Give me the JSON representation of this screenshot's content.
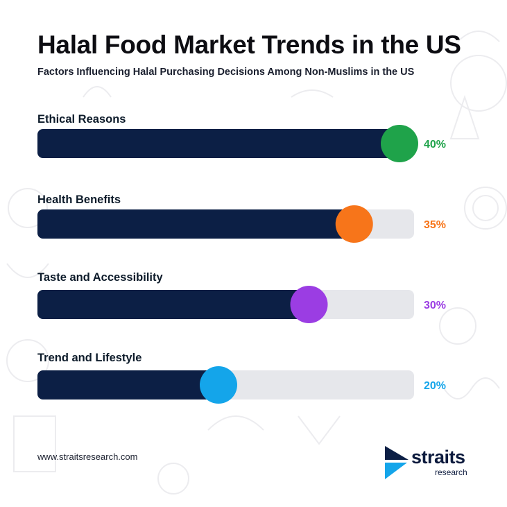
{
  "header": {
    "title": "Halal Food Market Trends in the US",
    "subtitle": "Factors Influencing Halal Purchasing Decisions Among Non-Muslims in the US"
  },
  "chart_data": {
    "type": "bar",
    "orientation": "horizontal",
    "categories": [
      "Ethical Reasons",
      "Health Benefits",
      "Taste and Accessibility",
      "Trend and Lifestyle"
    ],
    "values": [
      40,
      35,
      30,
      20
    ],
    "value_labels": [
      "40%",
      "35%",
      "30%",
      "20%"
    ],
    "unit": "%",
    "xlim": [
      0,
      40
    ],
    "colors": {
      "bar_fill": "#0c1f45",
      "track": "#e6e7eb",
      "markers": [
        "#1fa34a",
        "#f7751a",
        "#9b3de3",
        "#14a5ea"
      ]
    },
    "grid": false,
    "legend": "none"
  },
  "footer": {
    "url": "www.straitsresearch.com",
    "logo_name": "straits",
    "logo_sub": "research"
  }
}
